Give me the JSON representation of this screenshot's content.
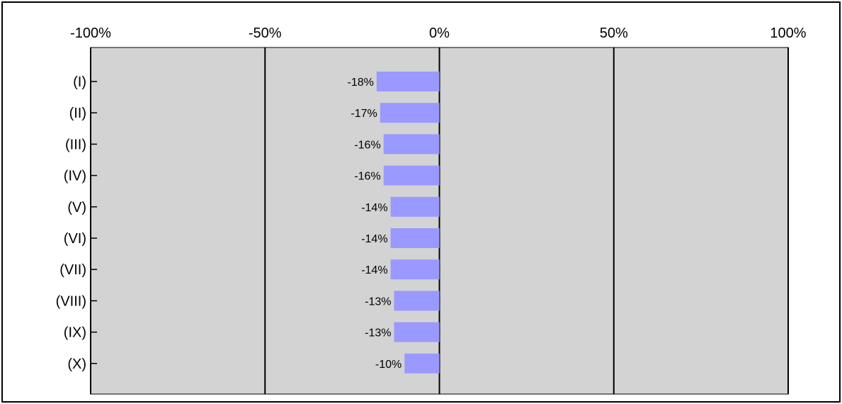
{
  "chart_data": {
    "type": "bar",
    "orientation": "horizontal",
    "title": "",
    "xlabel": "",
    "ylabel": "",
    "xlim": [
      -100,
      100
    ],
    "x_ticks": [
      -100,
      -50,
      0,
      50,
      100
    ],
    "x_tick_labels": [
      "-100%",
      "-50%",
      "0%",
      "50%",
      "100%"
    ],
    "x_axis_position": "top",
    "grid": "vertical",
    "legend": "none",
    "categories": [
      "(I)",
      "(II)",
      "(III)",
      "(IV)",
      "(V)",
      "(VI)",
      "(VII)",
      "(VIII)",
      "(IX)",
      "(X)"
    ],
    "values": [
      -18,
      -17,
      -16,
      -16,
      -14,
      -14,
      -14,
      -13,
      -13,
      -10
    ],
    "value_labels": [
      "-18%",
      "-17%",
      "-16%",
      "-16%",
      "-14%",
      "-14%",
      "-14%",
      "-13%",
      "-13%",
      "-10%"
    ],
    "colors": {
      "bar": "#9999ff",
      "plot_background": "#d3d3d3",
      "gridline": "#000000"
    }
  }
}
